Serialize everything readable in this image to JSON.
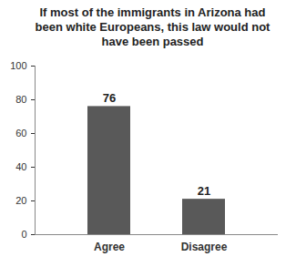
{
  "chart_data": {
    "type": "bar",
    "title": "If most of the immigrants in Arizona had been white Europeans, this law would not have been passed",
    "categories": [
      "Agree",
      "Disagree"
    ],
    "values": [
      76,
      21
    ],
    "color": "#595959",
    "ylim": [
      0,
      100
    ],
    "yticks": [
      0,
      20,
      40,
      60,
      80,
      100
    ],
    "grid": false,
    "data_labels": true
  }
}
